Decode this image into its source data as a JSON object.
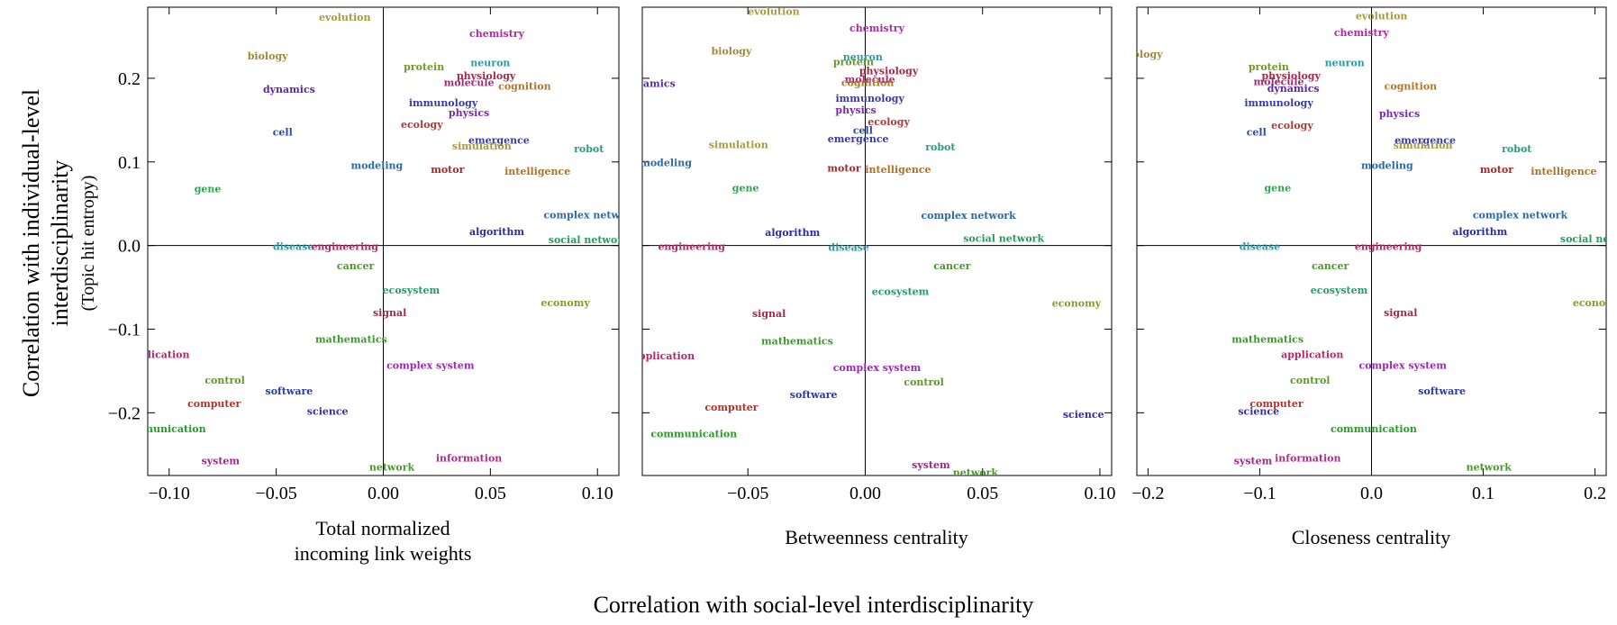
{
  "figure": {
    "y_title_line1": "Correlation with individual-level",
    "y_title_line2": "interdisciplinarity",
    "y_subtitle": "(Topic hit entropy)",
    "x_title": "Correlation with social-level interdisciplinarity"
  },
  "chart_data": [
    {
      "type": "scatter",
      "xlabel_line1": "Total normalized",
      "xlabel_line2": "incoming link weights",
      "xlim": [
        -0.11,
        0.11
      ],
      "ylim": [
        -0.275,
        0.285
      ],
      "xticks": [
        -0.1,
        -0.05,
        0.0,
        0.05,
        0.1
      ],
      "xtick_labels": [
        "−0.10",
        "−0.05",
        "0.00",
        "0.05",
        "0.10"
      ],
      "yticks": [
        -0.2,
        -0.1,
        0.0,
        0.1,
        0.2
      ],
      "ytick_labels": [
        "−0.2",
        "−0.1",
        "0.0",
        "0.1",
        "0.2"
      ],
      "points": [
        {
          "label": "evolution",
          "x": -0.018,
          "y": 0.273,
          "color": "#a89a3a"
        },
        {
          "label": "chemistry",
          "x": 0.053,
          "y": 0.254,
          "color": "#b02aa6"
        },
        {
          "label": "biology",
          "x": -0.054,
          "y": 0.227,
          "color": "#a08a3a"
        },
        {
          "label": "protein",
          "x": 0.019,
          "y": 0.214,
          "color": "#6c9a2a"
        },
        {
          "label": "neuron",
          "x": 0.05,
          "y": 0.219,
          "color": "#2a9aa6"
        },
        {
          "label": "physiology",
          "x": 0.048,
          "y": 0.203,
          "color": "#a22a4a"
        },
        {
          "label": "molecule",
          "x": 0.04,
          "y": 0.195,
          "color": "#a22a7a"
        },
        {
          "label": "cognition",
          "x": 0.066,
          "y": 0.191,
          "color": "#b0762a"
        },
        {
          "label": "dynamics",
          "x": -0.044,
          "y": 0.187,
          "color": "#5a2aa6"
        },
        {
          "label": "immunology",
          "x": 0.028,
          "y": 0.171,
          "color": "#3a3aa6"
        },
        {
          "label": "physics",
          "x": 0.04,
          "y": 0.159,
          "color": "#7a2ab0"
        },
        {
          "label": "ecology",
          "x": 0.018,
          "y": 0.145,
          "color": "#b03a3a"
        },
        {
          "label": "cell",
          "x": -0.047,
          "y": 0.136,
          "color": "#2a4aa6"
        },
        {
          "label": "emergence",
          "x": 0.054,
          "y": 0.126,
          "color": "#3a3aa6"
        },
        {
          "label": "simulation",
          "x": 0.046,
          "y": 0.119,
          "color": "#a89a3a"
        },
        {
          "label": "robot",
          "x": 0.096,
          "y": 0.116,
          "color": "#2a9a7a"
        },
        {
          "label": "modeling",
          "x": -0.003,
          "y": 0.096,
          "color": "#2a6aa6"
        },
        {
          "label": "motor",
          "x": 0.03,
          "y": 0.091,
          "color": "#a22a2a"
        },
        {
          "label": "intelligence",
          "x": 0.072,
          "y": 0.089,
          "color": "#a8722a"
        },
        {
          "label": "gene",
          "x": -0.082,
          "y": 0.068,
          "color": "#2aa64a"
        },
        {
          "label": "complex network",
          "x": 0.097,
          "y": 0.037,
          "color": "#2a6aa6"
        },
        {
          "label": "algorithm",
          "x": 0.053,
          "y": 0.017,
          "color": "#2a2aa6"
        },
        {
          "label": "social network",
          "x": 0.096,
          "y": 0.007,
          "color": "#2a9a5a"
        },
        {
          "label": "disease",
          "x": -0.042,
          "y": -0.001,
          "color": "#2a9aa6"
        },
        {
          "label": "engineering",
          "x": -0.018,
          "y": -0.001,
          "color": "#b02a6a"
        },
        {
          "label": "cancer",
          "x": -0.013,
          "y": -0.024,
          "color": "#4a9a2a"
        },
        {
          "label": "ecosystem",
          "x": 0.013,
          "y": -0.053,
          "color": "#2a9a6a"
        },
        {
          "label": "economy",
          "x": 0.085,
          "y": -0.068,
          "color": "#8a9a2a"
        },
        {
          "label": "signal",
          "x": 0.003,
          "y": -0.08,
          "color": "#a22a4a"
        },
        {
          "label": "mathematics",
          "x": -0.015,
          "y": -0.112,
          "color": "#3a9a2a"
        },
        {
          "label": "application",
          "x": -0.105,
          "y": -0.13,
          "color": "#b02a6a"
        },
        {
          "label": "complex system",
          "x": 0.022,
          "y": -0.143,
          "color": "#9a2ab0"
        },
        {
          "label": "control",
          "x": -0.074,
          "y": -0.161,
          "color": "#5a9a2a"
        },
        {
          "label": "software",
          "x": -0.044,
          "y": -0.174,
          "color": "#2a3aa6"
        },
        {
          "label": "computer",
          "x": -0.079,
          "y": -0.189,
          "color": "#b0342a"
        },
        {
          "label": "science",
          "x": -0.026,
          "y": -0.198,
          "color": "#3a2aa6"
        },
        {
          "label": "communication",
          "x": -0.103,
          "y": -0.219,
          "color": "#2a9a2a"
        },
        {
          "label": "information",
          "x": 0.04,
          "y": -0.254,
          "color": "#b02a8a"
        },
        {
          "label": "system",
          "x": -0.076,
          "y": -0.257,
          "color": "#9a2a8a"
        },
        {
          "label": "network",
          "x": 0.004,
          "y": -0.265,
          "color": "#4a9a2a"
        }
      ]
    },
    {
      "type": "scatter",
      "xlabel_line1": "Betweenness centrality",
      "xlabel_line2": "",
      "xlim": [
        -0.095,
        0.105
      ],
      "ylim": [
        -0.275,
        0.285
      ],
      "xticks": [
        -0.05,
        0.0,
        0.05,
        0.1
      ],
      "xtick_labels": [
        "−0.05",
        "0.00",
        "0.05",
        "0.10"
      ],
      "yticks": [
        -0.2,
        -0.1,
        0.0,
        0.1,
        0.2
      ],
      "ytick_labels": [
        "",
        "",
        "",
        "",
        ""
      ],
      "points": [
        {
          "label": "evolution",
          "x": -0.039,
          "y": 0.28,
          "color": "#a89a3a"
        },
        {
          "label": "chemistry",
          "x": 0.005,
          "y": 0.26,
          "color": "#b02aa6"
        },
        {
          "label": "biology",
          "x": -0.057,
          "y": 0.233,
          "color": "#a08a3a"
        },
        {
          "label": "neuron",
          "x": -0.001,
          "y": 0.226,
          "color": "#2a9aa6"
        },
        {
          "label": "protein",
          "x": -0.005,
          "y": 0.22,
          "color": "#6c9a2a"
        },
        {
          "label": "physiology",
          "x": 0.01,
          "y": 0.209,
          "color": "#a22a4a"
        },
        {
          "label": "molecule",
          "x": 0.002,
          "y": 0.199,
          "color": "#a22a7a"
        },
        {
          "label": "cognition",
          "x": 0.001,
          "y": 0.195,
          "color": "#b0762a"
        },
        {
          "label": "dynamics",
          "x": -0.092,
          "y": 0.194,
          "color": "#5a2aa6"
        },
        {
          "label": "immunology",
          "x": 0.002,
          "y": 0.176,
          "color": "#3a3aa6"
        },
        {
          "label": "physics",
          "x": -0.004,
          "y": 0.162,
          "color": "#7a2ab0"
        },
        {
          "label": "ecology",
          "x": 0.01,
          "y": 0.148,
          "color": "#b03a3a"
        },
        {
          "label": "cell",
          "x": -0.001,
          "y": 0.138,
          "color": "#2a4aa6"
        },
        {
          "label": "emergence",
          "x": -0.003,
          "y": 0.128,
          "color": "#3a3aa6"
        },
        {
          "label": "simulation",
          "x": -0.054,
          "y": 0.121,
          "color": "#a89a3a"
        },
        {
          "label": "robot",
          "x": 0.032,
          "y": 0.118,
          "color": "#2a9a7a"
        },
        {
          "label": "modeling",
          "x": -0.085,
          "y": 0.099,
          "color": "#2a6aa6"
        },
        {
          "label": "motor",
          "x": -0.009,
          "y": 0.093,
          "color": "#a22a2a"
        },
        {
          "label": "intelligence",
          "x": 0.014,
          "y": 0.091,
          "color": "#a8722a"
        },
        {
          "label": "gene",
          "x": -0.051,
          "y": 0.069,
          "color": "#2aa64a"
        },
        {
          "label": "complex network",
          "x": 0.044,
          "y": 0.036,
          "color": "#2a6aa6"
        },
        {
          "label": "algorithm",
          "x": -0.031,
          "y": 0.016,
          "color": "#2a2aa6"
        },
        {
          "label": "social network",
          "x": 0.059,
          "y": 0.009,
          "color": "#2a9a5a"
        },
        {
          "label": "engineering",
          "x": -0.074,
          "y": -0.001,
          "color": "#b02a6a"
        },
        {
          "label": "disease",
          "x": -0.007,
          "y": -0.002,
          "color": "#2a9aa6"
        },
        {
          "label": "cancer",
          "x": 0.037,
          "y": -0.024,
          "color": "#4a9a2a"
        },
        {
          "label": "ecosystem",
          "x": 0.015,
          "y": -0.055,
          "color": "#2a9a6a"
        },
        {
          "label": "economy",
          "x": 0.09,
          "y": -0.069,
          "color": "#8a9a2a"
        },
        {
          "label": "signal",
          "x": -0.041,
          "y": -0.081,
          "color": "#a22a4a"
        },
        {
          "label": "mathematics",
          "x": -0.029,
          "y": -0.114,
          "color": "#3a9a2a"
        },
        {
          "label": "application",
          "x": -0.086,
          "y": -0.132,
          "color": "#b02a6a"
        },
        {
          "label": "complex system",
          "x": 0.005,
          "y": -0.146,
          "color": "#9a2ab0"
        },
        {
          "label": "control",
          "x": 0.025,
          "y": -0.163,
          "color": "#5a9a2a"
        },
        {
          "label": "software",
          "x": -0.022,
          "y": -0.178,
          "color": "#2a3aa6"
        },
        {
          "label": "computer",
          "x": -0.057,
          "y": -0.193,
          "color": "#b0342a"
        },
        {
          "label": "science",
          "x": 0.093,
          "y": -0.202,
          "color": "#3a2aa6"
        },
        {
          "label": "communication",
          "x": -0.073,
          "y": -0.225,
          "color": "#2a9a2a"
        },
        {
          "label": "system",
          "x": 0.028,
          "y": -0.262,
          "color": "#9a2a8a"
        },
        {
          "label": "network",
          "x": 0.047,
          "y": -0.271,
          "color": "#4a9a2a"
        }
      ]
    },
    {
      "type": "scatter",
      "xlabel_line1": "Closeness centrality",
      "xlabel_line2": "",
      "xlim": [
        -0.21,
        0.21
      ],
      "ylim": [
        -0.275,
        0.285
      ],
      "xticks": [
        -0.2,
        -0.1,
        0.0,
        0.1,
        0.2
      ],
      "xtick_labels": [
        "−0.2",
        "−0.1",
        "0.0",
        "0.1",
        "0.2"
      ],
      "yticks": [
        -0.2,
        -0.1,
        0.0,
        0.1,
        0.2
      ],
      "ytick_labels": [
        "",
        "",
        "",
        "",
        ""
      ],
      "points": [
        {
          "label": "evolution",
          "x": 0.009,
          "y": 0.275,
          "color": "#a89a3a"
        },
        {
          "label": "chemistry",
          "x": -0.009,
          "y": 0.255,
          "color": "#b02aa6"
        },
        {
          "label": "biology",
          "x": -0.205,
          "y": 0.229,
          "color": "#a08a3a"
        },
        {
          "label": "neuron",
          "x": -0.024,
          "y": 0.219,
          "color": "#2a9aa6"
        },
        {
          "label": "protein",
          "x": -0.092,
          "y": 0.214,
          "color": "#6c9a2a"
        },
        {
          "label": "physiology",
          "x": -0.072,
          "y": 0.203,
          "color": "#a22a4a"
        },
        {
          "label": "molecule",
          "x": -0.083,
          "y": 0.196,
          "color": "#a22a7a"
        },
        {
          "label": "dynamics",
          "x": -0.07,
          "y": 0.188,
          "color": "#5a2aa6"
        },
        {
          "label": "cognition",
          "x": 0.035,
          "y": 0.191,
          "color": "#b0762a"
        },
        {
          "label": "immunology",
          "x": -0.083,
          "y": 0.171,
          "color": "#3a3aa6"
        },
        {
          "label": "physics",
          "x": 0.025,
          "y": 0.158,
          "color": "#7a2ab0"
        },
        {
          "label": "ecology",
          "x": -0.071,
          "y": 0.144,
          "color": "#b03a3a"
        },
        {
          "label": "cell",
          "x": -0.103,
          "y": 0.136,
          "color": "#2a4aa6"
        },
        {
          "label": "emergence",
          "x": 0.048,
          "y": 0.126,
          "color": "#3a3aa6"
        },
        {
          "label": "simulation",
          "x": 0.046,
          "y": 0.12,
          "color": "#a89a3a"
        },
        {
          "label": "robot",
          "x": 0.13,
          "y": 0.116,
          "color": "#2a9a7a"
        },
        {
          "label": "modeling",
          "x": 0.014,
          "y": 0.096,
          "color": "#2a6aa6"
        },
        {
          "label": "motor",
          "x": 0.112,
          "y": 0.091,
          "color": "#a22a2a"
        },
        {
          "label": "intelligence",
          "x": 0.172,
          "y": 0.089,
          "color": "#a8722a"
        },
        {
          "label": "gene",
          "x": -0.084,
          "y": 0.069,
          "color": "#2aa64a"
        },
        {
          "label": "complex network",
          "x": 0.133,
          "y": 0.037,
          "color": "#2a6aa6"
        },
        {
          "label": "algorithm",
          "x": 0.097,
          "y": 0.017,
          "color": "#2a2aa6"
        },
        {
          "label": "social network",
          "x": 0.205,
          "y": 0.008,
          "color": "#2a9a5a"
        },
        {
          "label": "disease",
          "x": -0.1,
          "y": -0.001,
          "color": "#2a9aa6"
        },
        {
          "label": "engineering",
          "x": 0.015,
          "y": -0.001,
          "color": "#b02a6a"
        },
        {
          "label": "cancer",
          "x": -0.037,
          "y": -0.024,
          "color": "#4a9a2a"
        },
        {
          "label": "ecosystem",
          "x": -0.029,
          "y": -0.053,
          "color": "#2a9a6a"
        },
        {
          "label": "economy",
          "x": 0.202,
          "y": -0.068,
          "color": "#8a9a2a"
        },
        {
          "label": "signal",
          "x": 0.026,
          "y": -0.08,
          "color": "#a22a4a"
        },
        {
          "label": "mathematics",
          "x": -0.093,
          "y": -0.112,
          "color": "#3a9a2a"
        },
        {
          "label": "application",
          "x": -0.053,
          "y": -0.13,
          "color": "#b02a6a"
        },
        {
          "label": "complex system",
          "x": 0.028,
          "y": -0.143,
          "color": "#9a2ab0"
        },
        {
          "label": "control",
          "x": -0.055,
          "y": -0.161,
          "color": "#5a9a2a"
        },
        {
          "label": "software",
          "x": 0.063,
          "y": -0.174,
          "color": "#2a3aa6"
        },
        {
          "label": "computer",
          "x": -0.085,
          "y": -0.189,
          "color": "#b0342a"
        },
        {
          "label": "science",
          "x": -0.101,
          "y": -0.198,
          "color": "#3a2aa6"
        },
        {
          "label": "communication",
          "x": 0.002,
          "y": -0.219,
          "color": "#2a9a2a"
        },
        {
          "label": "information",
          "x": -0.057,
          "y": -0.254,
          "color": "#b02a8a"
        },
        {
          "label": "system",
          "x": -0.106,
          "y": -0.257,
          "color": "#9a2a8a"
        },
        {
          "label": "network",
          "x": 0.105,
          "y": -0.265,
          "color": "#4a9a2a"
        }
      ]
    }
  ]
}
